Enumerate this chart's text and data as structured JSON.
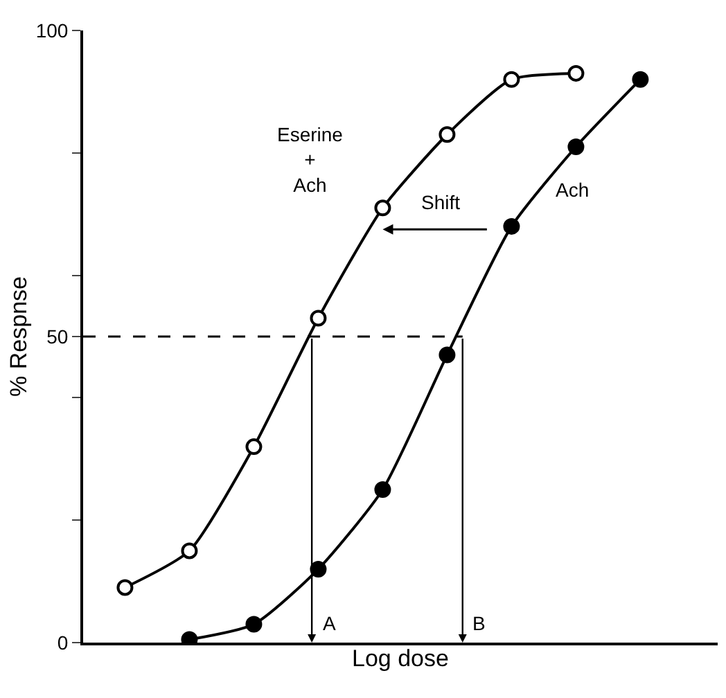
{
  "chart_data": {
    "type": "line",
    "xlabel": "Log dose",
    "ylabel": "% Respnse",
    "categories": [
      null,
      null,
      null,
      null,
      null,
      null,
      null,
      null,
      null
    ],
    "series": [
      {
        "name": "Eserine + Ach",
        "color": "#000000",
        "values": [
          9,
          15,
          32,
          53,
          71,
          83,
          92,
          93,
          null
        ]
      },
      {
        "name": "Ach",
        "color": "#000000",
        "values": [
          null,
          0.5,
          3,
          12,
          25,
          47,
          68,
          81,
          92
        ]
      }
    ],
    "ylim": [
      0,
      100
    ],
    "yticks": [
      0,
      {
        "value": 20,
        "label": null
      },
      {
        "value": 40,
        "label": null
      },
      50,
      {
        "value": 60,
        "label": null
      },
      {
        "value": 80,
        "label": null
      },
      100
    ],
    "ref_lines": [
      {
        "axis": "y",
        "value": 50,
        "line_style": "dashed"
      }
    ],
    "annotations": [
      "Shift",
      "A",
      "B"
    ],
    "marker": "circle",
    "line_style": "solid",
    "legend": false
  }
}
